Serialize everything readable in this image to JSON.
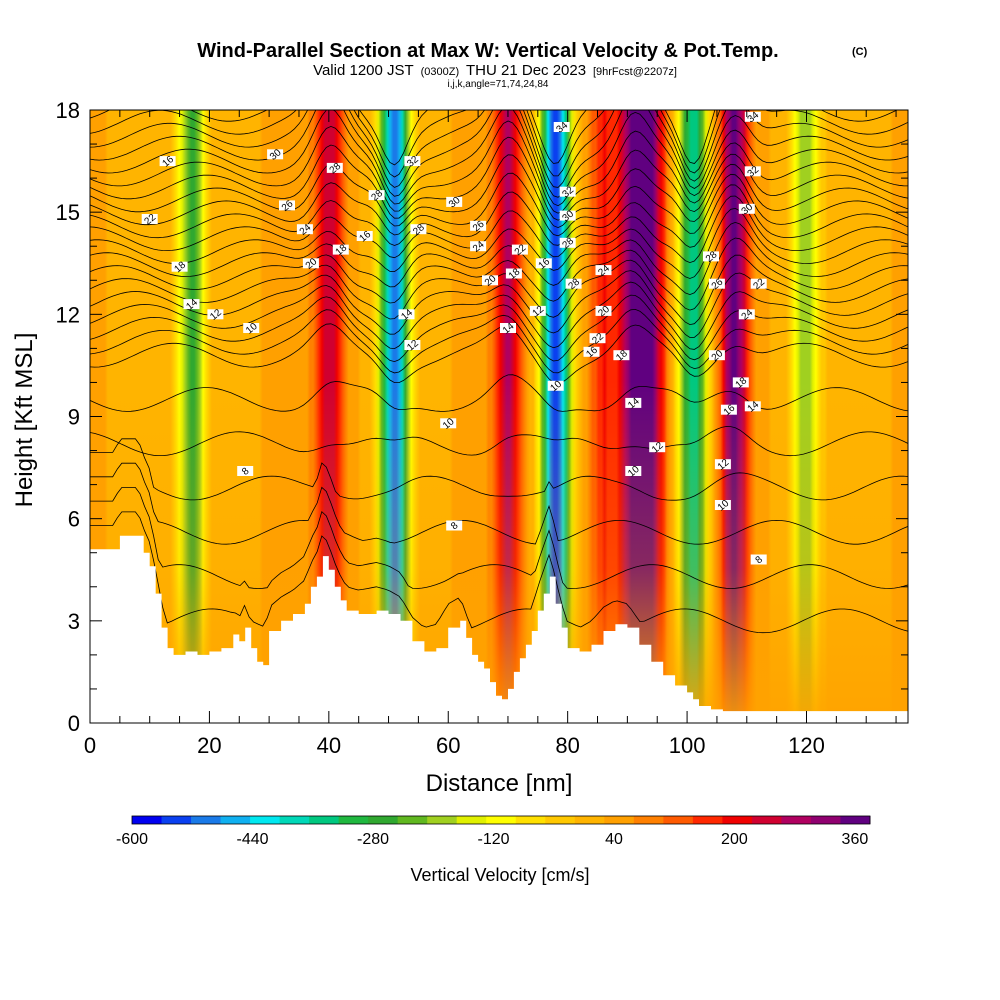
{
  "chart_data": {
    "type": "heatmap",
    "title": "Wind-Parallel Section at Max W: Vertical Velocity & Pot.Temp.",
    "title_mark": "(C)",
    "subtitle_main_1": "Valid 1200 JST",
    "subtitle_small_1": "(0300Z)",
    "subtitle_main_2": "THU 21 Dec 2023",
    "subtitle_small_2": "[9hrFcst@2207z]",
    "subtitle_line2": "i,j,k,angle=71,74,24,84",
    "xlabel": "Distance [nm]",
    "ylabel": "Height [Kft MSL]",
    "xlim": [
      0,
      137
    ],
    "ylim": [
      0,
      18
    ],
    "xticks": [
      0,
      20,
      40,
      60,
      80,
      100,
      120
    ],
    "yticks": [
      0,
      3,
      6,
      9,
      12,
      15,
      18
    ],
    "colorbar": {
      "label": "Vertical Velocity [cm/s]",
      "min": -600,
      "max": 380,
      "step": 40,
      "tick_labels": [
        -600,
        -440,
        -280,
        -120,
        40,
        200,
        360
      ],
      "colors": [
        "#0000f0",
        "#0a40f0",
        "#1a7ae8",
        "#10b0f0",
        "#00e8f0",
        "#00d8b8",
        "#00c880",
        "#20b840",
        "#30a830",
        "#60b820",
        "#a0d020",
        "#e0f000",
        "#ffff00",
        "#ffe000",
        "#ffc800",
        "#ffb400",
        "#ffa000",
        "#ff8000",
        "#ff5a00",
        "#ff2800",
        "#f00000",
        "#d00030",
        "#b00060",
        "#900070",
        "#600080"
      ]
    },
    "vertical_velocity_bands": [
      {
        "x": 17,
        "w": -250
      },
      {
        "x": 40,
        "w": 280
      },
      {
        "x": 51,
        "w": -520
      },
      {
        "x": 70,
        "w": 300
      },
      {
        "x": 78,
        "w": -560
      },
      {
        "x": 86,
        "w": 200
      },
      {
        "x": 91,
        "w": 340
      },
      {
        "x": 94,
        "w": 320
      },
      {
        "x": 101,
        "w": -350
      },
      {
        "x": 108,
        "w": 380
      },
      {
        "x": 120,
        "w": -200
      }
    ],
    "terrain_heights": [
      [
        0,
        5.1
      ],
      [
        2,
        5.1
      ],
      [
        4,
        5.1
      ],
      [
        5,
        5.5
      ],
      [
        8,
        5.5
      ],
      [
        9,
        5.0
      ],
      [
        10,
        4.6
      ],
      [
        11,
        3.8
      ],
      [
        12,
        2.8
      ],
      [
        13,
        2.2
      ],
      [
        14,
        2.0
      ],
      [
        16,
        2.1
      ],
      [
        18,
        2.0
      ],
      [
        20,
        2.1
      ],
      [
        22,
        2.2
      ],
      [
        24,
        2.6
      ],
      [
        25,
        2.4
      ],
      [
        26,
        2.8
      ],
      [
        27,
        2.2
      ],
      [
        28,
        1.8
      ],
      [
        29,
        1.7
      ],
      [
        30,
        2.7
      ],
      [
        32,
        3.0
      ],
      [
        34,
        3.2
      ],
      [
        36,
        3.5
      ],
      [
        37,
        4.0
      ],
      [
        38,
        4.3
      ],
      [
        39,
        4.9
      ],
      [
        40,
        4.5
      ],
      [
        41,
        4.0
      ],
      [
        42,
        3.6
      ],
      [
        43,
        3.3
      ],
      [
        45,
        3.2
      ],
      [
        48,
        3.3
      ],
      [
        50,
        3.2
      ],
      [
        52,
        3.0
      ],
      [
        54,
        2.4
      ],
      [
        56,
        2.1
      ],
      [
        58,
        2.2
      ],
      [
        60,
        2.8
      ],
      [
        62,
        3.0
      ],
      [
        63,
        2.5
      ],
      [
        64,
        2.0
      ],
      [
        65,
        1.8
      ],
      [
        66,
        1.6
      ],
      [
        67,
        1.2
      ],
      [
        68,
        0.8
      ],
      [
        69,
        0.7
      ],
      [
        70,
        1.0
      ],
      [
        71,
        1.5
      ],
      [
        72,
        1.9
      ],
      [
        73,
        2.3
      ],
      [
        74,
        2.7
      ],
      [
        75,
        3.3
      ],
      [
        76,
        3.8
      ],
      [
        77,
        4.3
      ],
      [
        78,
        3.5
      ],
      [
        79,
        2.8
      ],
      [
        80,
        2.2
      ],
      [
        82,
        2.1
      ],
      [
        84,
        2.3
      ],
      [
        86,
        2.7
      ],
      [
        88,
        2.9
      ],
      [
        90,
        2.8
      ],
      [
        92,
        2.3
      ],
      [
        94,
        1.8
      ],
      [
        96,
        1.4
      ],
      [
        98,
        1.1
      ],
      [
        100,
        0.9
      ],
      [
        101,
        0.7
      ],
      [
        102,
        0.5
      ],
      [
        104,
        0.4
      ],
      [
        106,
        0.35
      ],
      [
        137,
        0.35
      ]
    ],
    "theta_contour_labels": [
      "8",
      "10",
      "12",
      "14",
      "16",
      "18",
      "20",
      "22",
      "24",
      "26",
      "28",
      "30",
      "32",
      "34"
    ]
  }
}
